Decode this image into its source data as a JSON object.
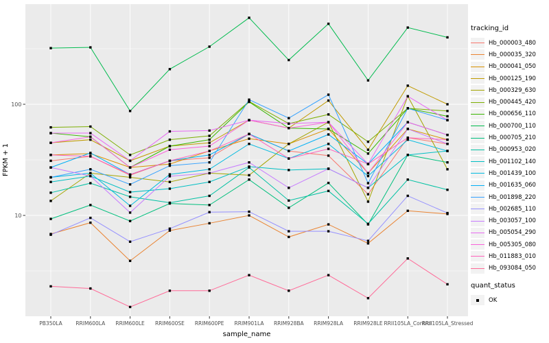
{
  "chart_data": {
    "type": "line",
    "title": "",
    "xlabel": "sample_name",
    "ylabel": "FPKM + 1",
    "scale": "log10",
    "yticks": [
      10,
      100
    ],
    "yminor": [
      3.162,
      31.62,
      316.2
    ],
    "ylim": [
      1.24,
      780
    ],
    "grid": true,
    "legend_position": "right",
    "point_color": "#000000",
    "point_shape": "square",
    "categories": [
      "PB350LA",
      "RRIM600LA",
      "RRIM600LE",
      "RRIM600SE",
      "RRIM600PE",
      "RRIM901LA",
      "RRIM928BA",
      "RRIM928LA",
      "RRIM928LE",
      "RRII105LA_Control",
      "RRII105LA_Stressed"
    ],
    "series": [
      {
        "name": "Hb_000003_480",
        "color": "#F8766D",
        "values": [
          31,
          34,
          23,
          31,
          33,
          54,
          38,
          34.5,
          15.5,
          50,
          44
        ]
      },
      {
        "name": "Hb_000035_320",
        "color": "#EA8331",
        "values": [
          6.8,
          8.6,
          3.9,
          7.3,
          8.5,
          10,
          6.4,
          8.3,
          5.6,
          11,
          10.3
        ]
      },
      {
        "name": "Hb_000041_050",
        "color": "#D89000",
        "values": [
          35,
          36,
          27,
          29,
          38,
          49,
          44,
          60,
          24,
          60,
          48
        ]
      },
      {
        "name": "Hb_000125_190",
        "color": "#C09B00",
        "values": [
          45,
          48,
          31,
          42,
          45,
          72,
          61,
          108,
          39,
          147,
          100
        ]
      },
      {
        "name": "Hb_000329_630",
        "color": "#A3A500",
        "values": [
          13.5,
          24,
          22,
          20,
          24,
          23,
          44,
          69,
          13.3,
          118,
          26
        ]
      },
      {
        "name": "Hb_000445_420",
        "color": "#7CAE00",
        "values": [
          62,
          63,
          35,
          48,
          52,
          106,
          67,
          81,
          46,
          92,
          87
        ]
      },
      {
        "name": "Hb_000656_110",
        "color": "#39B600",
        "values": [
          55,
          51,
          27,
          42,
          48,
          105,
          61,
          60,
          36,
          92,
          78
        ]
      },
      {
        "name": "Hb_000700_110",
        "color": "#00BB4E",
        "values": [
          320,
          325,
          87,
          207,
          330,
          600,
          250,
          530,
          164,
          490,
          400
        ]
      },
      {
        "name": "Hb_000705_210",
        "color": "#00BF7D",
        "values": [
          9.3,
          12.4,
          8.9,
          12.8,
          12.4,
          21,
          11.7,
          19.6,
          8.3,
          35,
          30
        ]
      },
      {
        "name": "Hb_000953_020",
        "color": "#00C1A3",
        "values": [
          16,
          19.5,
          14.7,
          13,
          15,
          27,
          13.6,
          16.6,
          8.4,
          21,
          17
        ]
      },
      {
        "name": "Hb_001102_140",
        "color": "#00BFC4",
        "values": [
          20,
          22.6,
          16.2,
          17.4,
          20,
          27.5,
          25.6,
          26.3,
          17.7,
          35,
          38
        ]
      },
      {
        "name": "Hb_001439_100",
        "color": "#00BAE0",
        "values": [
          22,
          24,
          12.2,
          23.4,
          26,
          44,
          32.5,
          44,
          22.6,
          48,
          38
        ]
      },
      {
        "name": "Hb_001635_060",
        "color": "#00B0F6",
        "values": [
          27,
          36.5,
          23.3,
          31,
          35,
          54,
          38,
          53.5,
          29,
          69,
          53
        ]
      },
      {
        "name": "Hb_001898_220",
        "color": "#35A2FF",
        "values": [
          22,
          26,
          19,
          28,
          30,
          110,
          75,
          122,
          19.5,
          92,
          72
        ]
      },
      {
        "name": "Hb_002685_110",
        "color": "#9590FF",
        "values": [
          6.7,
          9.5,
          5.8,
          7.6,
          10.7,
          10.8,
          7.2,
          7.2,
          5.9,
          15,
          10.5
        ]
      },
      {
        "name": "Hb_003057_100",
        "color": "#C77CFF",
        "values": [
          27,
          22.6,
          10.6,
          22.5,
          24,
          30,
          17.7,
          26.3,
          17.7,
          60,
          44
        ]
      },
      {
        "name": "Hb_005054_290",
        "color": "#E76BF3",
        "values": [
          55,
          55,
          31,
          57,
          58,
          72,
          67,
          69,
          29,
          118,
          72
        ]
      },
      {
        "name": "Hb_005305_080",
        "color": "#FA62DB",
        "values": [
          45,
          51,
          27,
          39,
          42,
          72,
          61,
          69,
          24,
          69,
          53
        ]
      },
      {
        "name": "Hb_011883_010",
        "color": "#FF62BC",
        "values": [
          35,
          34,
          23.3,
          31,
          38,
          54,
          32.5,
          39.7,
          29,
          50,
          48
        ]
      },
      {
        "name": "Hb_093084_050",
        "color": "#FF6A98",
        "values": [
          2.3,
          2.2,
          1.5,
          2.1,
          2.1,
          2.9,
          2.1,
          2.9,
          1.8,
          4.1,
          2.4
        ]
      }
    ]
  },
  "legend": {
    "tracking_title": "tracking_id",
    "quant_title": "quant_status",
    "quant_items": [
      {
        "label": "OK"
      }
    ]
  },
  "style": {
    "panel_bg": "#EBEBEB",
    "grid_major": "#FFFFFF",
    "grid_minor": "#FFFFFF",
    "tick_text": "#4D4D4D",
    "axis_title": "#000000",
    "key_bg": "#F2F2F2",
    "point": "#000000"
  }
}
